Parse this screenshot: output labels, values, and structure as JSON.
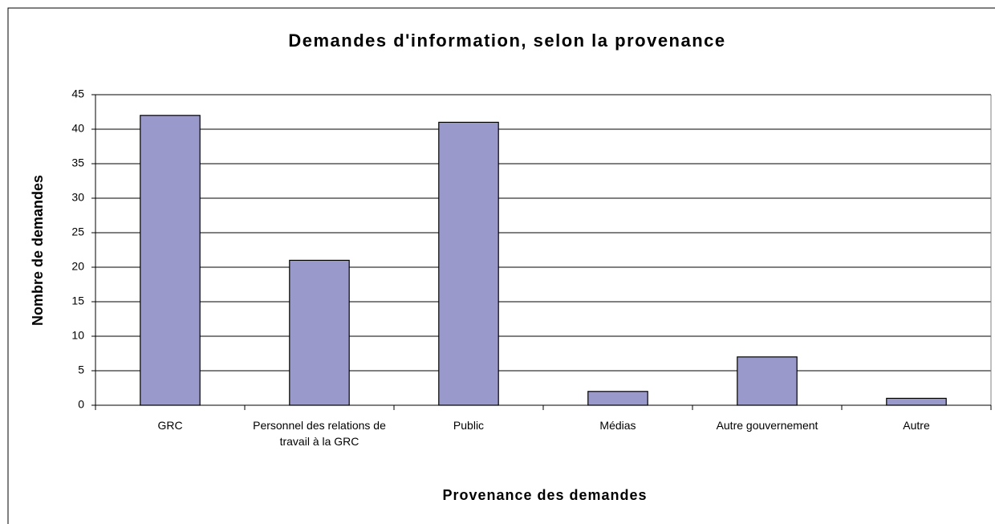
{
  "chart_data": {
    "type": "bar",
    "title": "Demandes d'information, selon la provenance",
    "x_label": "Provenance des demandes",
    "y_label": "Nombre de demandes",
    "categories": [
      "GRC",
      "Personnel des relations de travail à la GRC",
      "Public",
      "Médias",
      "Autre gouvernement",
      "Autre"
    ],
    "values": [
      42,
      21,
      41,
      2,
      7,
      1
    ],
    "color": "#9999cc",
    "ylim": [
      0,
      45
    ],
    "yticks": [
      0,
      5,
      10,
      15,
      20,
      25,
      30,
      35,
      40,
      45
    ],
    "grid": true
  }
}
